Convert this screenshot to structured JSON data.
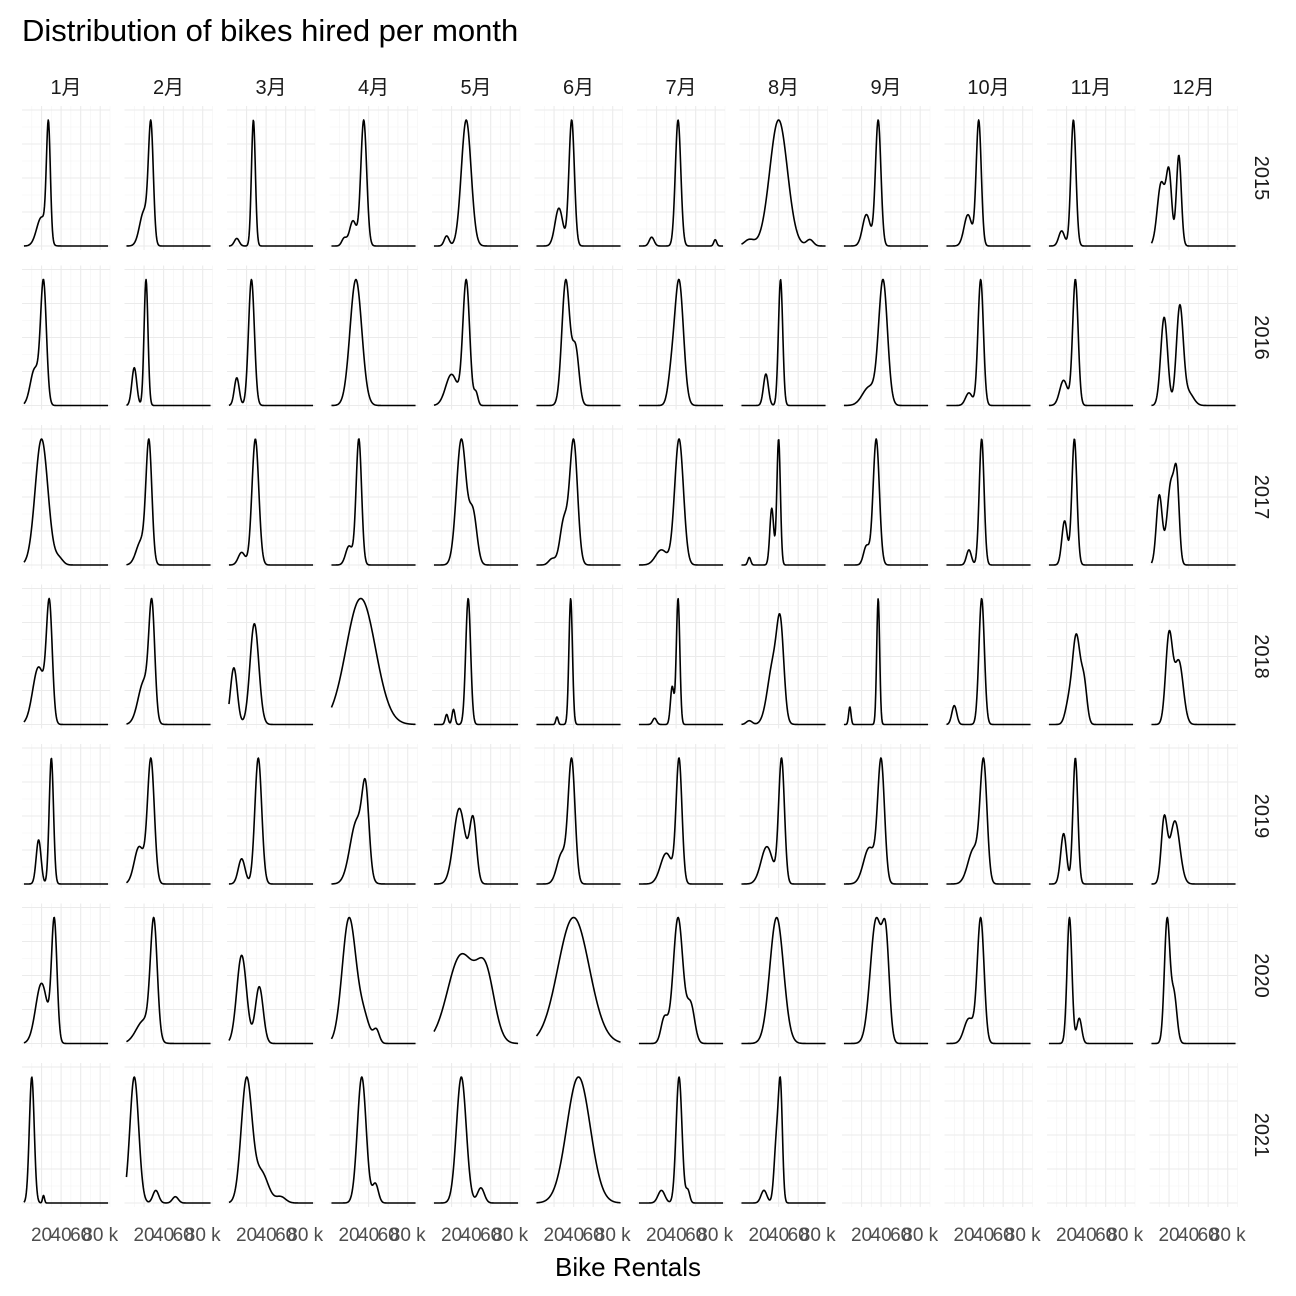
{
  "chart_data": {
    "type": "density",
    "title": "Distribution of bikes hired per month",
    "xlabel": "Bike Rentals",
    "ylabel": "",
    "x_tick_labels": [
      "20",
      "40",
      "60",
      "80 k"
    ],
    "x_tick_values": [
      20000,
      40000,
      60000,
      80000
    ],
    "xlim": [
      0,
      90000
    ],
    "grid": true,
    "legend": "none",
    "months": [
      "1月",
      "2月",
      "3月",
      "4月",
      "5月",
      "6月",
      "7月",
      "8月",
      "9月",
      "10月",
      "11月",
      "12月"
    ],
    "years": [
      "2015",
      "2016",
      "2017",
      "2018",
      "2019",
      "2020",
      "2021"
    ],
    "panels": {
      "2015": [
        [
          [
            20000,
            0.25,
            5000
          ],
          [
            27000,
            1,
            2000
          ]
        ],
        [
          [
            20000,
            0.3,
            4500
          ],
          [
            27000,
            1,
            2500
          ]
        ],
        [
          [
            10000,
            0.06,
            2500
          ],
          [
            27000,
            1,
            2000
          ]
        ],
        [
          [
            15000,
            0.06,
            2500
          ],
          [
            24000,
            0.2,
            3500
          ],
          [
            35000,
            1,
            3000
          ]
        ],
        [
          [
            15000,
            0.08,
            2500
          ],
          [
            35000,
            1,
            5000
          ]
        ],
        [
          [
            25000,
            0.3,
            4000
          ],
          [
            38000,
            1,
            2800
          ]
        ],
        [
          [
            15000,
            0.07,
            2500
          ],
          [
            42000,
            1,
            2800
          ],
          [
            80000,
            0.05,
            1500
          ]
        ],
        [
          [
            10000,
            0.05,
            5000
          ],
          [
            40000,
            1,
            9000
          ],
          [
            72000,
            0.05,
            3500
          ]
        ],
        [
          [
            25000,
            0.25,
            4000
          ],
          [
            37000,
            1,
            2800
          ]
        ],
        [
          [
            24000,
            0.25,
            4000
          ],
          [
            35000,
            1,
            2600
          ]
        ],
        [
          [
            15000,
            0.12,
            3000
          ],
          [
            27000,
            1,
            2600
          ]
        ],
        [
          [
            12000,
            0.5,
            4000
          ],
          [
            20000,
            0.55,
            2800
          ],
          [
            30000,
            0.72,
            2500
          ]
        ]
      ],
      "2016": [
        [
          [
            13000,
            0.3,
            4500
          ],
          [
            22000,
            1,
            3000
          ]
        ],
        [
          [
            10000,
            0.3,
            2500
          ],
          [
            22000,
            1,
            2000
          ]
        ],
        [
          [
            10000,
            0.22,
            2500
          ],
          [
            25000,
            1,
            3000
          ]
        ],
        [
          [
            27000,
            1,
            6000
          ]
        ],
        [
          [
            20000,
            0.25,
            6000
          ],
          [
            35000,
            1,
            3500
          ],
          [
            45000,
            0.1,
            2000
          ]
        ],
        [
          [
            32000,
            1,
            4000
          ],
          [
            42000,
            0.45,
            3500
          ]
        ],
        [
          [
            43000,
            1,
            4500
          ],
          [
            35000,
            0.2,
            3500
          ]
        ],
        [
          [
            27000,
            0.25,
            2500
          ],
          [
            42000,
            1,
            2200
          ]
        ],
        [
          [
            28000,
            0.15,
            7000
          ],
          [
            42000,
            1,
            4500
          ]
        ],
        [
          [
            25000,
            0.1,
            3500
          ],
          [
            37000,
            1,
            2800
          ]
        ],
        [
          [
            17000,
            0.2,
            4000
          ],
          [
            29000,
            1,
            2800
          ]
        ],
        [
          [
            15000,
            0.7,
            3500
          ],
          [
            31000,
            0.78,
            3500
          ],
          [
            40000,
            0.1,
            5000
          ]
        ]
      ],
      "2017": [
        [
          [
            20000,
            1,
            6500
          ],
          [
            38000,
            0.05,
            4000
          ]
        ],
        [
          [
            17000,
            0.2,
            5000
          ],
          [
            25000,
            1,
            3000
          ]
        ],
        [
          [
            15000,
            0.1,
            3500
          ],
          [
            29000,
            1,
            3500
          ]
        ],
        [
          [
            20000,
            0.15,
            3500
          ],
          [
            30000,
            1,
            2800
          ]
        ],
        [
          [
            30000,
            1,
            5000
          ],
          [
            42000,
            0.4,
            4000
          ]
        ],
        [
          [
            40000,
            1,
            4000
          ],
          [
            30000,
            0.35,
            4000
          ],
          [
            18000,
            0.05,
            3500
          ]
        ],
        [
          [
            25000,
            0.12,
            6000
          ],
          [
            43000,
            1,
            4500
          ]
        ],
        [
          [
            10000,
            0.06,
            1500
          ],
          [
            33000,
            0.45,
            2000
          ],
          [
            40000,
            1,
            1800
          ]
        ],
        [
          [
            25000,
            0.15,
            3000
          ],
          [
            35000,
            1,
            3200
          ]
        ],
        [
          [
            25000,
            0.12,
            2500
          ],
          [
            38000,
            1,
            2500
          ]
        ],
        [
          [
            18000,
            0.35,
            2800
          ],
          [
            28000,
            1,
            2600
          ]
        ],
        [
          [
            10000,
            0.55,
            3000
          ],
          [
            22000,
            0.65,
            4000
          ],
          [
            28000,
            0.55,
            2500
          ]
        ]
      ],
      "2018": [
        [
          [
            17000,
            0.5,
            6000
          ],
          [
            28000,
            1,
            3000
          ]
        ],
        [
          [
            20000,
            0.4,
            6000
          ],
          [
            28000,
            1,
            3000
          ]
        ],
        [
          [
            7000,
            0.45,
            3500
          ],
          [
            28000,
            0.8,
            4500
          ]
        ],
        [
          [
            32000,
            1,
            15000
          ]
        ],
        [
          [
            15000,
            0.08,
            1500
          ],
          [
            22000,
            0.12,
            1500
          ],
          [
            37000,
            1,
            2500
          ]
        ],
        [
          [
            23000,
            0.06,
            1200
          ],
          [
            37000,
            1,
            1800
          ]
        ],
        [
          [
            18000,
            0.05,
            2000
          ],
          [
            36000,
            0.3,
            1800
          ],
          [
            42000,
            1,
            1800
          ]
        ],
        [
          [
            10000,
            0.03,
            3000
          ],
          [
            35000,
            0.5,
            6000
          ],
          [
            42000,
            0.6,
            3500
          ]
        ],
        [
          [
            8000,
            0.14,
            1200
          ],
          [
            37000,
            1,
            1500
          ]
        ],
        [
          [
            10000,
            0.15,
            2500
          ],
          [
            38000,
            1,
            2800
          ]
        ],
        [
          [
            22000,
            0.15,
            3500
          ],
          [
            30000,
            0.7,
            4000
          ],
          [
            38000,
            0.3,
            3000
          ]
        ],
        [
          [
            20000,
            0.7,
            3500
          ],
          [
            30000,
            0.5,
            4500
          ]
        ]
      ],
      "2019": [
        [
          [
            17000,
            0.35,
            2500
          ],
          [
            30000,
            1,
            2200
          ]
        ],
        [
          [
            15000,
            0.3,
            5000
          ],
          [
            27000,
            1,
            3500
          ]
        ],
        [
          [
            15000,
            0.2,
            3500
          ],
          [
            32000,
            1,
            3500
          ]
        ],
        [
          [
            28000,
            0.5,
            7000
          ],
          [
            37000,
            0.6,
            3500
          ]
        ],
        [
          [
            28000,
            0.6,
            6000
          ],
          [
            42000,
            0.5,
            3500
          ]
        ],
        [
          [
            28000,
            0.25,
            5000
          ],
          [
            38000,
            1,
            3500
          ]
        ],
        [
          [
            30000,
            0.25,
            6000
          ],
          [
            43000,
            1,
            3000
          ]
        ],
        [
          [
            28000,
            0.3,
            6000
          ],
          [
            43000,
            1,
            3000
          ]
        ],
        [
          [
            28000,
            0.3,
            6000
          ],
          [
            40000,
            1,
            3500
          ]
        ],
        [
          [
            30000,
            0.3,
            6000
          ],
          [
            40000,
            1,
            3500
          ]
        ],
        [
          [
            17000,
            0.4,
            3000
          ],
          [
            29000,
            1,
            2500
          ]
        ],
        [
          [
            15000,
            0.5,
            3000
          ],
          [
            26000,
            0.5,
            5000
          ]
        ]
      ],
      "2020": [
        [
          [
            20000,
            0.5,
            6000
          ],
          [
            33000,
            1,
            2800
          ]
        ],
        [
          [
            20000,
            0.2,
            8000
          ],
          [
            30000,
            1,
            3500
          ]
        ],
        [
          [
            15000,
            0.7,
            5000
          ],
          [
            33000,
            0.45,
            4000
          ]
        ],
        [
          [
            20000,
            1,
            7000
          ],
          [
            35000,
            0.2,
            6000
          ],
          [
            48000,
            0.1,
            3000
          ]
        ],
        [
          [
            30000,
            0.7,
            14000
          ],
          [
            55000,
            0.5,
            9000
          ]
        ],
        [
          [
            40000,
            1,
            16000
          ]
        ],
        [
          [
            28000,
            0.2,
            3500
          ],
          [
            42000,
            1,
            5000
          ],
          [
            55000,
            0.3,
            4000
          ]
        ],
        [
          [
            38000,
            1,
            7000
          ]
        ],
        [
          [
            35000,
            1,
            6000
          ],
          [
            45000,
            0.7,
            3500
          ]
        ],
        [
          [
            25000,
            0.2,
            5000
          ],
          [
            37000,
            1,
            3500
          ]
        ],
        [
          [
            23000,
            1,
            2500
          ],
          [
            33000,
            0.2,
            2500
          ]
        ],
        [
          [
            18000,
            1,
            2800
          ],
          [
            25000,
            0.4,
            3000
          ]
        ]
      ],
      "2021": [
        [
          [
            10000,
            1,
            2500
          ],
          [
            22000,
            0.06,
            1000
          ]
        ],
        [
          [
            10000,
            1,
            4500
          ],
          [
            32000,
            0.1,
            3000
          ],
          [
            52000,
            0.05,
            3000
          ]
        ],
        [
          [
            20000,
            1,
            5500
          ],
          [
            35000,
            0.25,
            7000
          ],
          [
            55000,
            0.05,
            5000
          ]
        ],
        [
          [
            33000,
            1,
            4500
          ],
          [
            47000,
            0.15,
            3000
          ]
        ],
        [
          [
            30000,
            1,
            5000
          ],
          [
            50000,
            0.12,
            3500
          ]
        ],
        [
          [
            45000,
            1,
            12000
          ]
        ],
        [
          [
            25000,
            0.1,
            3500
          ],
          [
            43000,
            1,
            3000
          ],
          [
            52000,
            0.1,
            2000
          ]
        ],
        [
          [
            25000,
            0.12,
            3000
          ],
          [
            38000,
            0.6,
            2500
          ],
          [
            42000,
            1,
            2000
          ]
        ],
        null,
        null,
        null,
        null
      ]
    }
  }
}
